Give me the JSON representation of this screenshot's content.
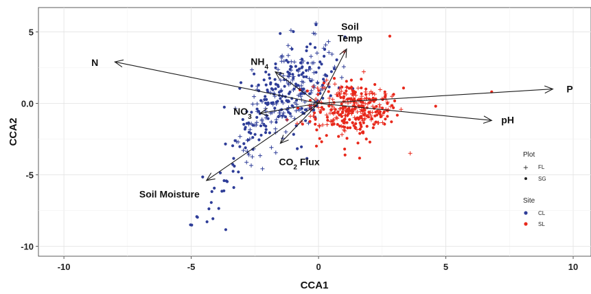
{
  "chart_data": {
    "type": "scatter",
    "subtype": "CCA biplot",
    "xlabel": "CCA1",
    "ylabel": "CCA2",
    "xlim": [
      -11,
      10.7
    ],
    "ylim": [
      -10.7,
      6.7
    ],
    "x_ticks": [
      -10,
      -5,
      0,
      5,
      10
    ],
    "y_ticks": [
      5,
      0,
      -5,
      -10
    ],
    "y_tick_labels": [
      "5",
      "0.0",
      "-5",
      "-10"
    ],
    "grid": true,
    "colors": {
      "CL": "#2e3d98",
      "SL": "#e8291c",
      "arrow": "#1a1a1a"
    },
    "vectors": [
      {
        "name": "N",
        "label_main": "N",
        "label_sub": "",
        "x": -8.0,
        "y": 2.9
      },
      {
        "name": "Soil Temp",
        "label_main": "Soil",
        "label_line2": "Temp",
        "label_sub": "",
        "x": 1.1,
        "y": 3.8
      },
      {
        "name": "NH4",
        "label_main": "NH",
        "label_sub": "4",
        "x": -1.7,
        "y": 2.2
      },
      {
        "name": "NO3",
        "label_main": "NO",
        "label_sub": "3",
        "x": -2.3,
        "y": -0.7
      },
      {
        "name": "CO2 Flux",
        "label_main": "CO",
        "label_sub": "2",
        "label_tail": " Flux",
        "x": -1.5,
        "y": -2.8
      },
      {
        "name": "Soil Moisture",
        "label_main": "Soil Moisture",
        "label_sub": "",
        "x": -4.4,
        "y": -5.4
      },
      {
        "name": "P",
        "label_main": "P",
        "label_sub": "",
        "x": 9.2,
        "y": 1.0
      },
      {
        "name": "pH",
        "label_main": "pH",
        "label_sub": "",
        "x": 6.8,
        "y": -1.2
      }
    ],
    "clusters": [
      {
        "site": "CL",
        "plot": "SG",
        "n": 210,
        "cx": -1.3,
        "cy": 0.6,
        "sx": 0.9,
        "sy": 1.6,
        "tail_to": [
          -4.6,
          -8.4
        ],
        "tail_points": 45
      },
      {
        "site": "CL",
        "plot": "FL",
        "n": 150,
        "cx": -1.1,
        "cy": 1.0,
        "sx": 0.8,
        "sy": 1.6,
        "tail_to": [
          -3.0,
          -5.0
        ],
        "tail_points": 20
      },
      {
        "site": "SL",
        "plot": "SG",
        "n": 200,
        "cx": 1.3,
        "cy": -0.6,
        "sx": 0.9,
        "sy": 1.1
      },
      {
        "site": "SL",
        "plot": "FL",
        "n": 150,
        "cx": 1.2,
        "cy": -0.4,
        "sx": 0.9,
        "sy": 1.0
      }
    ],
    "outliers": [
      {
        "site": "SL",
        "plot": "SG",
        "x": 6.8,
        "y": 0.8
      },
      {
        "site": "SL",
        "plot": "SG",
        "x": 4.6,
        "y": -0.2
      },
      {
        "site": "SL",
        "plot": "SG",
        "x": 2.8,
        "y": 4.7
      },
      {
        "site": "SL",
        "plot": "FL",
        "x": 3.6,
        "y": -3.5
      },
      {
        "site": "SL",
        "plot": "FL",
        "x": 1.0,
        "y": 3.6
      },
      {
        "site": "CL",
        "plot": "SG",
        "x": -0.1,
        "y": 5.5
      },
      {
        "site": "CL",
        "plot": "FL",
        "x": -0.1,
        "y": 5.6
      },
      {
        "site": "CL",
        "plot": "FL",
        "x": -0.2,
        "y": 4.9
      }
    ],
    "legend": {
      "position": "right",
      "plot_title": "Plot",
      "plot_items": [
        {
          "key": "FL",
          "label": "FL",
          "marker": "+"
        },
        {
          "key": "SG",
          "label": "SG",
          "marker": "dot"
        }
      ],
      "site_title": "Site",
      "site_items": [
        {
          "key": "CL",
          "label": "CL"
        },
        {
          "key": "SL",
          "label": "SL"
        }
      ]
    }
  }
}
